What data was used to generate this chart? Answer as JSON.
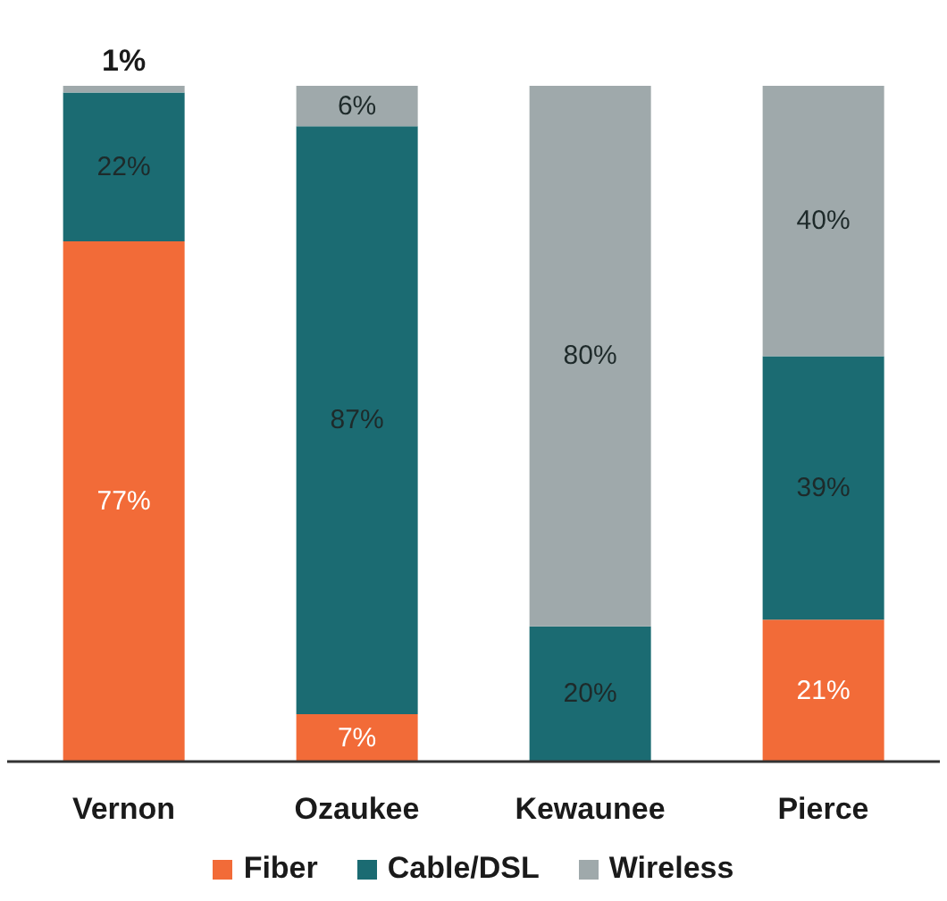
{
  "chart_data": {
    "type": "bar",
    "stacked": true,
    "categories": [
      "Vernon",
      "Ozaukee",
      "Kewaunee",
      "Pierce"
    ],
    "series": [
      {
        "name": "Fiber",
        "color": "#f26b38",
        "values": [
          77,
          7,
          0,
          21
        ],
        "value_labels": [
          "77%",
          "7%",
          null,
          "21%"
        ]
      },
      {
        "name": "Cable/DSL",
        "color": "#1b6b72",
        "values": [
          22,
          87,
          20,
          39
        ],
        "value_labels": [
          "22%",
          "87%",
          "20%",
          "39%"
        ]
      },
      {
        "name": "Wireless",
        "color": "#9fa9ab",
        "values": [
          1,
          6,
          80,
          40
        ],
        "value_labels": [
          "1%",
          "6%",
          "80%",
          "40%"
        ]
      }
    ],
    "ylim": [
      0,
      100
    ],
    "tick_labels": "x",
    "grid": false,
    "legend": "bottom"
  }
}
